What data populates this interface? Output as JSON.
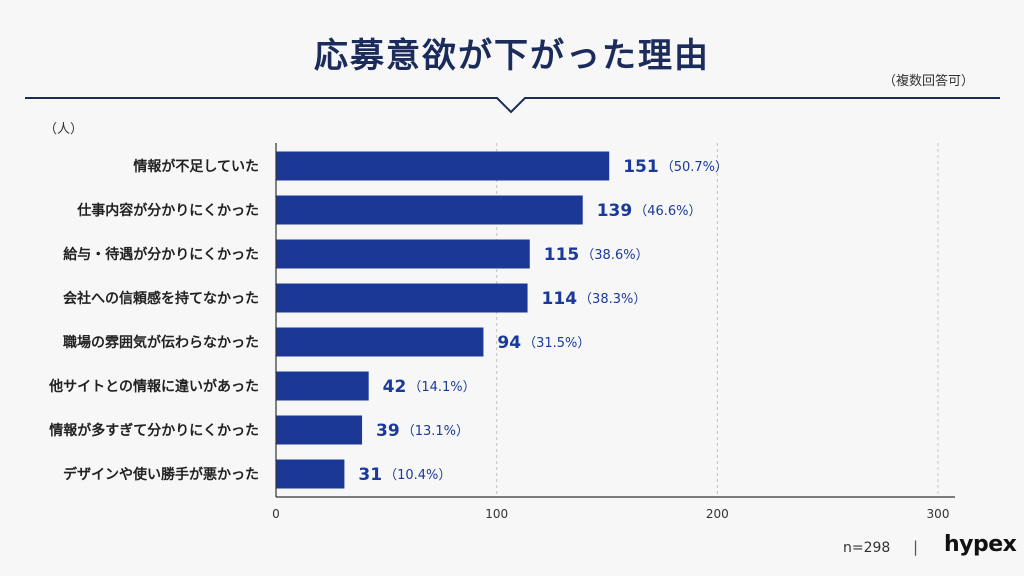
{
  "header": {
    "title": "応募意欲が下がった理由",
    "note": "（複数回答可）"
  },
  "footer": {
    "sample": "n=298",
    "separator": "|",
    "logo": "hypex"
  },
  "colors": {
    "bar": "#1c3897",
    "title": "#1a2b5c",
    "divider": "#1a2b5c",
    "value_text": "#1a3a99"
  },
  "chart_data": {
    "type": "bar",
    "orientation": "horizontal",
    "unit_label": "（人）",
    "categories": [
      "情報が不足していた",
      "仕事内容が分かりにくかった",
      "給与・待遇が分かりにくかった",
      "会社への信頼感を持てなかった",
      "職場の雰囲気が伝わらなかった",
      "他サイトとの情報に違いがあった",
      "情報が多すぎて分かりにくかった",
      "デザインや使い勝手が悪かった"
    ],
    "values": [
      151,
      139,
      115,
      114,
      94,
      42,
      39,
      31
    ],
    "percent_labels": [
      "（50.7%）",
      "（46.6%）",
      "（38.6%）",
      "（38.3%）",
      "（31.5%）",
      "（14.1%）",
      "（13.1%）",
      "（10.4%）"
    ],
    "xlim": [
      0,
      300
    ],
    "xticks": [
      0,
      100,
      200,
      300
    ],
    "grid": true,
    "grid_style": "dashed-vertical"
  }
}
